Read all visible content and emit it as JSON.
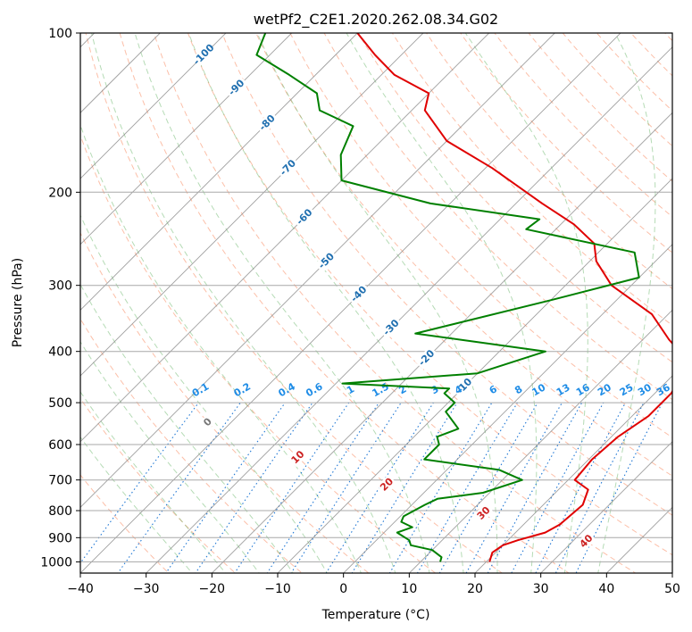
{
  "chart_data": {
    "type": "line",
    "title": "wetPf2_C2E1.2020.262.08.34.G02",
    "xlabel": "Temperature (°C)",
    "ylabel": "Pressure (hPa)",
    "xlim": [
      -40,
      50
    ],
    "ylim": [
      1050,
      100
    ],
    "y_scale": "log",
    "grid": true,
    "x_ticks": [
      -40,
      -30,
      -20,
      -10,
      0,
      10,
      20,
      30,
      40,
      50
    ],
    "y_ticks": [
      100,
      200,
      300,
      400,
      500,
      600,
      700,
      800,
      900,
      1000
    ],
    "skew_t": true,
    "colors": {
      "temperature": "#e00000",
      "dewpoint": "#008000",
      "isotherm": "#808080",
      "dry_adiabat": "#fa8a60",
      "moist_adiabat": "#5ab05a",
      "mixing_ratio": "#1f77d4",
      "mixing_label": "#1e8ce6",
      "isotherm_label": "#1f6fb0",
      "dry_label": "#cc2222",
      "isobar": "#a8a8a8"
    },
    "series": [
      {
        "key": "temperature",
        "x": [
          20.5,
          19.5,
          20.0,
          21.5,
          24.5,
          25.5,
          26.0,
          24.5,
          21.0,
          20.5,
          21.0,
          22.5,
          22.5,
          21.5,
          19.0,
          14.0,
          7.5,
          -3.0,
          -9.0,
          -12.0,
          -18.0,
          -26.0,
          -39.0,
          -50.0,
          -58.0,
          -60.0,
          -68.0,
          -74.0,
          -80.0
        ],
        "y": [
          1000,
          960,
          930,
          910,
          880,
          850,
          780,
          730,
          700,
          640,
          580,
          530,
          480,
          450,
          410,
          380,
          340,
          300,
          270,
          250,
          230,
          210,
          180,
          160,
          140,
          130,
          120,
          110,
          100
        ]
      },
      {
        "key": "dewpoint",
        "x": [
          13.0,
          12.5,
          10.0,
          6.0,
          5.0,
          2.0,
          3.5,
          1.0,
          0.5,
          2.0,
          3.0,
          9.0,
          13.0,
          8.0,
          -5.0,
          -5.0,
          -6.5,
          -4.5,
          -9.0,
          -9.0,
          -12.0,
          -12.0,
          -29.0,
          -10.0,
          -3.0,
          -25.5,
          -10.0,
          0.0,
          -4.5,
          -24.5,
          -24.0,
          -43.0,
          -60.0,
          -64.0,
          -66.5,
          -74.0,
          -77.0,
          -84.0,
          -92.0,
          -94.0
        ],
        "y": [
          1000,
          980,
          950,
          930,
          910,
          880,
          860,
          840,
          820,
          780,
          760,
          740,
          700,
          670,
          640,
          600,
          580,
          560,
          520,
          500,
          480,
          470,
          460,
          440,
          400,
          370,
          320,
          290,
          260,
          235,
          225,
          210,
          190,
          170,
          150,
          140,
          130,
          120,
          110,
          100
        ]
      }
    ],
    "isotherm_labels": [
      "-100",
      "-90",
      "-80",
      "-70",
      "-60",
      "-50",
      "-40",
      "-30",
      "-20",
      "-10"
    ],
    "isotherm_label_values": [
      -100,
      -90,
      -80,
      -70,
      -60,
      -50,
      -40,
      -30,
      -20,
      -10
    ],
    "dry_adiabat_labels": [
      "0",
      "10",
      "20",
      "30",
      "40"
    ],
    "dry_adiabat_label_values": [
      0,
      10,
      20,
      30,
      40
    ],
    "mixing_ratio_labels": [
      "0.1",
      "0.2",
      "0.4",
      "0.6",
      "1",
      "1.5",
      "2",
      "3",
      "4",
      "6",
      "8",
      "10",
      "13",
      "16",
      "20",
      "25",
      "30",
      "36"
    ],
    "mixing_ratio_values": [
      0.1,
      0.2,
      0.4,
      0.6,
      1,
      1.5,
      2,
      3,
      4,
      6,
      8,
      10,
      13,
      16,
      20,
      25,
      30,
      36
    ]
  }
}
